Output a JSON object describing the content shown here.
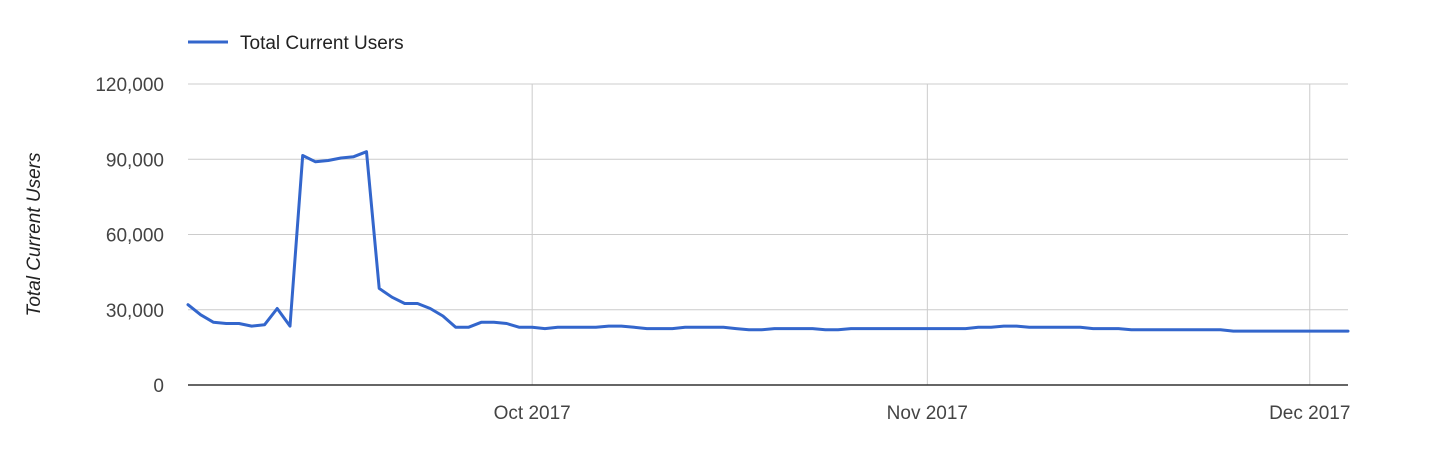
{
  "chart_data": {
    "type": "line",
    "title": "",
    "xlabel": "",
    "ylabel": "Total Current Users",
    "ylim": [
      0,
      120000
    ],
    "y_ticks": [
      "0",
      "30,000",
      "60,000",
      "90,000",
      "120,000"
    ],
    "y_tick_values": [
      0,
      30000,
      60000,
      90000,
      120000
    ],
    "x_ticks": [
      {
        "label": "Oct 2017",
        "date": "2017-10-01"
      },
      {
        "label": "Nov 2017",
        "date": "2017-11-01"
      },
      {
        "label": "Dec 2017",
        "date": "2017-12-01"
      }
    ],
    "xlim": [
      "2017-09-04",
      "2017-12-04"
    ],
    "grid": true,
    "legend": {
      "position": "top-left",
      "entries": [
        "Total Current Users"
      ]
    },
    "colors": {
      "series": "#3366cc",
      "grid": "#cccccc",
      "baseline": "#333333"
    },
    "series": [
      {
        "name": "Total Current Users",
        "x": [
          "2017-09-04",
          "2017-09-05",
          "2017-09-06",
          "2017-09-07",
          "2017-09-08",
          "2017-09-09",
          "2017-09-10",
          "2017-09-11",
          "2017-09-12",
          "2017-09-13",
          "2017-09-14",
          "2017-09-15",
          "2017-09-16",
          "2017-09-17",
          "2017-09-18",
          "2017-09-19",
          "2017-09-20",
          "2017-09-21",
          "2017-09-22",
          "2017-09-23",
          "2017-09-24",
          "2017-09-25",
          "2017-09-26",
          "2017-09-27",
          "2017-09-28",
          "2017-09-29",
          "2017-09-30",
          "2017-10-01",
          "2017-10-02",
          "2017-10-03",
          "2017-10-04",
          "2017-10-05",
          "2017-10-06",
          "2017-10-07",
          "2017-10-08",
          "2017-10-09",
          "2017-10-10",
          "2017-10-11",
          "2017-10-12",
          "2017-10-13",
          "2017-10-14",
          "2017-10-15",
          "2017-10-16",
          "2017-10-17",
          "2017-10-18",
          "2017-10-19",
          "2017-10-20",
          "2017-10-21",
          "2017-10-22",
          "2017-10-23",
          "2017-10-24",
          "2017-10-25",
          "2017-10-26",
          "2017-10-27",
          "2017-10-28",
          "2017-10-29",
          "2017-10-30",
          "2017-10-31",
          "2017-11-01",
          "2017-11-02",
          "2017-11-03",
          "2017-11-04",
          "2017-11-05",
          "2017-11-06",
          "2017-11-07",
          "2017-11-08",
          "2017-11-09",
          "2017-11-10",
          "2017-11-11",
          "2017-11-12",
          "2017-11-13",
          "2017-11-14",
          "2017-11-15",
          "2017-11-16",
          "2017-11-17",
          "2017-11-18",
          "2017-11-19",
          "2017-11-20",
          "2017-11-21",
          "2017-11-22",
          "2017-11-23",
          "2017-11-24",
          "2017-11-25",
          "2017-11-26",
          "2017-11-27",
          "2017-11-28",
          "2017-11-29",
          "2017-11-30",
          "2017-12-01",
          "2017-12-02",
          "2017-12-03",
          "2017-12-04"
        ],
        "values": [
          32000,
          28000,
          25000,
          24500,
          24500,
          23500,
          24000,
          30500,
          23500,
          91500,
          89000,
          89500,
          90500,
          91000,
          93000,
          38500,
          35000,
          32500,
          32500,
          30500,
          27500,
          23000,
          23000,
          25000,
          25000,
          24500,
          23000,
          23000,
          22500,
          23000,
          23000,
          23000,
          23000,
          23500,
          23500,
          23000,
          22500,
          22500,
          22500,
          23000,
          23000,
          23000,
          23000,
          22500,
          22000,
          22000,
          22500,
          22500,
          22500,
          22500,
          22000,
          22000,
          22500,
          22500,
          22500,
          22500,
          22500,
          22500,
          22500,
          22500,
          22500,
          22500,
          23000,
          23000,
          23500,
          23500,
          23000,
          23000,
          23000,
          23000,
          23000,
          22500,
          22500,
          22500,
          22000,
          22000,
          22000,
          22000,
          22000,
          22000,
          22000,
          22000,
          21500,
          21500,
          21500,
          21500,
          21500,
          21500,
          21500,
          21500,
          21500,
          21500
        ]
      }
    ]
  }
}
